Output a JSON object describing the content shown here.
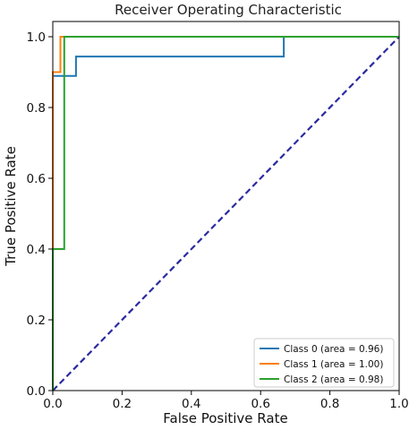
{
  "chart_data": {
    "type": "line",
    "title": "Receiver Operating Characteristic",
    "xlabel": "False Positive Rate",
    "ylabel": "True Positive Rate",
    "xlim": [
      0.0,
      1.0
    ],
    "ylim": [
      0.0,
      1.0
    ],
    "x_ticks": [
      "0.0",
      "0.2",
      "0.4",
      "0.6",
      "0.8",
      "1.0"
    ],
    "y_ticks": [
      "0.0",
      "0.2",
      "0.4",
      "0.6",
      "0.8",
      "1.0"
    ],
    "grid": false,
    "legend_position": "bottom-right",
    "series": [
      {
        "name": "Class 0 (area  = 0.96)",
        "color": "#1f77b4",
        "x": [
          0.0,
          0.0,
          0.0,
          0.067,
          0.067,
          0.667,
          0.667,
          1.0
        ],
        "y": [
          0.0,
          0.889,
          0.889,
          0.889,
          0.944,
          0.944,
          1.0,
          1.0
        ]
      },
      {
        "name": "Class 1 (area  = 1.00)",
        "color": "#ff7f0e",
        "x": [
          0.0,
          0.0,
          0.0,
          0.022,
          0.022,
          0.033,
          0.033,
          1.0
        ],
        "y": [
          0.0,
          0.2,
          0.9,
          0.9,
          1.0,
          1.0,
          1.0,
          1.0
        ]
      },
      {
        "name": "Class 2 (area  = 0.98)",
        "color": "#2ca02c",
        "x": [
          0.0,
          0.0,
          0.033,
          0.033,
          1.0
        ],
        "y": [
          0.0,
          0.4,
          0.4,
          1.0,
          1.0
        ]
      }
    ],
    "reference_line": {
      "x": [
        0.0,
        1.0
      ],
      "y": [
        0.0,
        1.0
      ],
      "color": "#2a2aa0",
      "style": "dashed"
    }
  }
}
